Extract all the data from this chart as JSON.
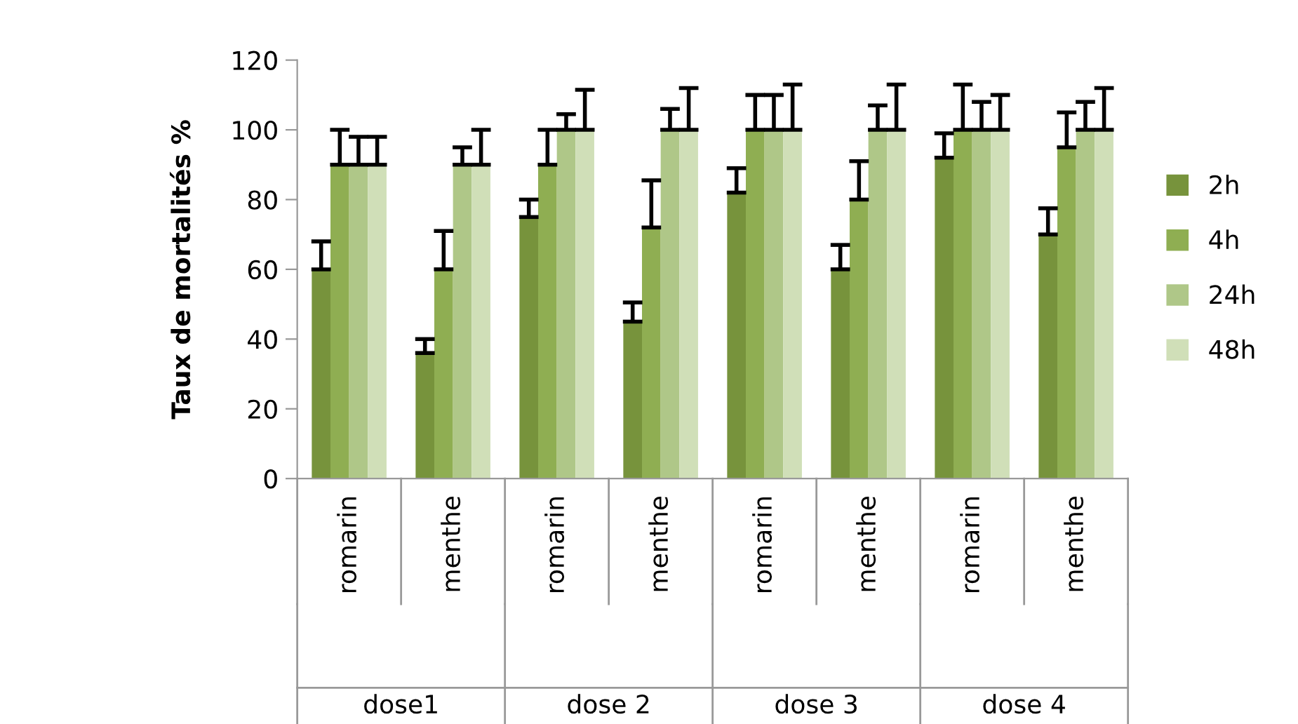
{
  "chart_data": {
    "type": "bar",
    "ylabel": "Taux de mortalités %",
    "categories": [
      "romarin",
      "menthe",
      "romarin",
      "menthe",
      "romarin",
      "menthe",
      "romarin",
      "menthe"
    ],
    "annotations": [
      "dose1",
      "dose 2",
      "dose 3",
      "dose 4"
    ],
    "series": [
      {
        "name": "2h",
        "color": "#77933c",
        "values": [
          60,
          36,
          75,
          45,
          82,
          60,
          92,
          70
        ],
        "errors": [
          [
            60,
            68
          ],
          [
            36,
            40
          ],
          [
            75,
            80
          ],
          [
            45,
            50.5
          ],
          [
            82,
            89
          ],
          [
            60,
            67
          ],
          [
            92,
            99
          ],
          [
            70,
            77.5
          ]
        ]
      },
      {
        "name": "4h",
        "color": "#8fae52",
        "values": [
          90,
          60,
          90,
          72,
          100,
          80,
          100,
          95
        ],
        "errors": [
          [
            90,
            100
          ],
          [
            60,
            71
          ],
          [
            90,
            100
          ],
          [
            72,
            85.5
          ],
          [
            100,
            110
          ],
          [
            80,
            91
          ],
          [
            100,
            113
          ],
          [
            95,
            105
          ]
        ]
      },
      {
        "name": "24h",
        "color": "#afc788",
        "values": [
          90,
          90,
          100,
          100,
          100,
          100,
          100,
          100
        ],
        "errors": [
          [
            90,
            98
          ],
          [
            90,
            95
          ],
          [
            100,
            104.5
          ],
          [
            100,
            106
          ],
          [
            100,
            110
          ],
          [
            100,
            107
          ],
          [
            100,
            108
          ],
          [
            100,
            108
          ]
        ]
      },
      {
        "name": "48h",
        "color": "#d0dfb8",
        "values": [
          90,
          90,
          100,
          100,
          100,
          100,
          100,
          100
        ],
        "errors": [
          [
            90,
            98
          ],
          [
            90,
            100
          ],
          [
            100,
            111.5
          ],
          [
            100,
            112
          ],
          [
            100,
            113
          ],
          [
            100,
            113
          ],
          [
            100,
            110
          ],
          [
            100,
            112
          ]
        ]
      }
    ],
    "ylim": [
      0,
      120
    ],
    "yticks": [
      0,
      20,
      40,
      60,
      80,
      100,
      120
    ],
    "grid": false,
    "legend": "right"
  }
}
